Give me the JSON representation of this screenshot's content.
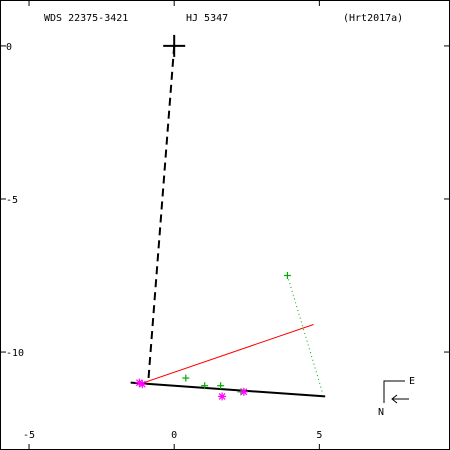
{
  "header": {
    "wds": "WDS 22375-3421",
    "disc": "HJ 5347",
    "ref": "(Hrt2017a)"
  },
  "orientation": {
    "east": "E",
    "north": "N"
  },
  "chart_data": {
    "type": "scatter",
    "xlim": [
      -6,
      9.5
    ],
    "ylim": [
      1.5,
      -13.2
    ],
    "x_ticks": [
      -5,
      0,
      5
    ],
    "y_ticks": [
      0,
      -5,
      -10
    ],
    "primary": {
      "x": 0,
      "y": 0
    },
    "orbit_line": {
      "x": [
        -1.5,
        5.2
      ],
      "y": [
        -11.0,
        -11.45
      ]
    },
    "dashed_line": {
      "x": [
        0,
        -0.9
      ],
      "y": [
        0,
        -11.05
      ]
    },
    "red_line": {
      "x": [
        -1.2,
        4.8
      ],
      "y": [
        -11.05,
        -9.1
      ]
    },
    "green_dotted_line": {
      "x": [
        3.9,
        5.1
      ],
      "y": [
        -7.5,
        -11.3
      ]
    },
    "series": [
      {
        "marker": "plus",
        "color": "#00aa00",
        "points": [
          [
            3.9,
            -7.5
          ],
          [
            0.4,
            -10.85
          ],
          [
            1.6,
            -11.1
          ],
          [
            1.05,
            -11.1
          ],
          [
            2.3,
            -11.3
          ]
        ]
      },
      {
        "marker": "asterisk",
        "color": "#ff00ff",
        "points": [
          [
            -1.2,
            -11.0
          ],
          [
            -1.1,
            -11.05
          ],
          [
            1.65,
            -11.45
          ],
          [
            2.4,
            -11.3
          ]
        ]
      }
    ],
    "colors": {
      "orbit": "#000000",
      "fit": "#ff0000",
      "measures": "#00aa00",
      "recent": "#ff00ff"
    }
  }
}
